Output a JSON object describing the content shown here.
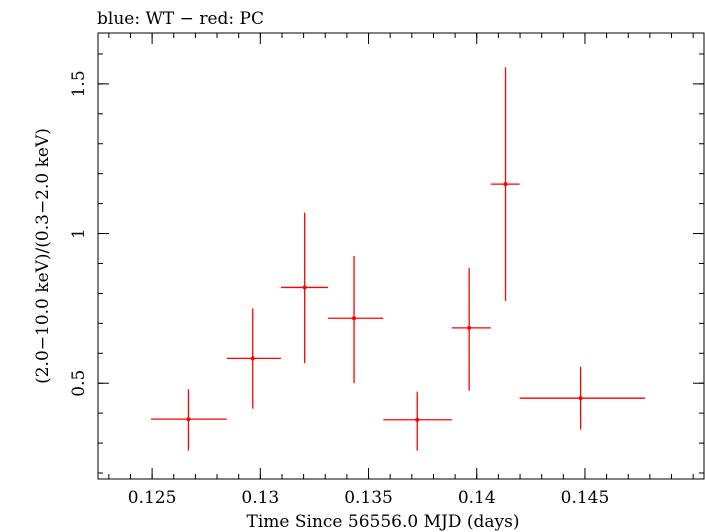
{
  "chart_data": {
    "type": "scatter",
    "title": "blue: WT − red: PC",
    "xlabel": "Time Since 56556.0 MJD (days)",
    "ylabel": "(2.0−10.0 keV)/(0.3−2.0 keV)",
    "xlim": [
      0.1225,
      0.1505
    ],
    "ylim": [
      0.18,
      1.67
    ],
    "x_ticks": [
      0.125,
      0.13,
      0.135,
      0.14,
      0.145
    ],
    "x_tick_labels": [
      "0.125",
      "0.13",
      "0.135",
      "0.14",
      "0.145"
    ],
    "y_ticks": [
      0.5,
      1,
      1.5
    ],
    "y_tick_labels": [
      "0.5",
      "1",
      "1.5"
    ],
    "x_minor_step": 0.001,
    "y_minor_step": 0.1,
    "grid": false,
    "series": [
      {
        "name": "PC",
        "color": "#ff0000",
        "points": [
          {
            "x": 0.12668,
            "xlo": 0.12495,
            "xhi": 0.12845,
            "y": 0.38,
            "ylo": 0.275,
            "yhi": 0.48
          },
          {
            "x": 0.12965,
            "xlo": 0.12845,
            "xhi": 0.13095,
            "y": 0.583,
            "ylo": 0.415,
            "yhi": 0.75
          },
          {
            "x": 0.13205,
            "xlo": 0.13095,
            "xhi": 0.13313,
            "y": 0.82,
            "ylo": 0.567,
            "yhi": 1.07
          },
          {
            "x": 0.13433,
            "xlo": 0.13313,
            "xhi": 0.13568,
            "y": 0.717,
            "ylo": 0.5,
            "yhi": 0.925
          },
          {
            "x": 0.13725,
            "xlo": 0.13568,
            "xhi": 0.13885,
            "y": 0.378,
            "ylo": 0.275,
            "yhi": 0.472
          },
          {
            "x": 0.13965,
            "xlo": 0.13885,
            "xhi": 0.14065,
            "y": 0.685,
            "ylo": 0.475,
            "yhi": 0.885
          },
          {
            "x": 0.14133,
            "xlo": 0.14065,
            "xhi": 0.14198,
            "y": 1.165,
            "ylo": 0.775,
            "yhi": 1.555
          },
          {
            "x": 0.1448,
            "xlo": 0.14198,
            "xhi": 0.14778,
            "y": 0.45,
            "ylo": 0.345,
            "yhi": 0.555
          }
        ]
      }
    ]
  }
}
